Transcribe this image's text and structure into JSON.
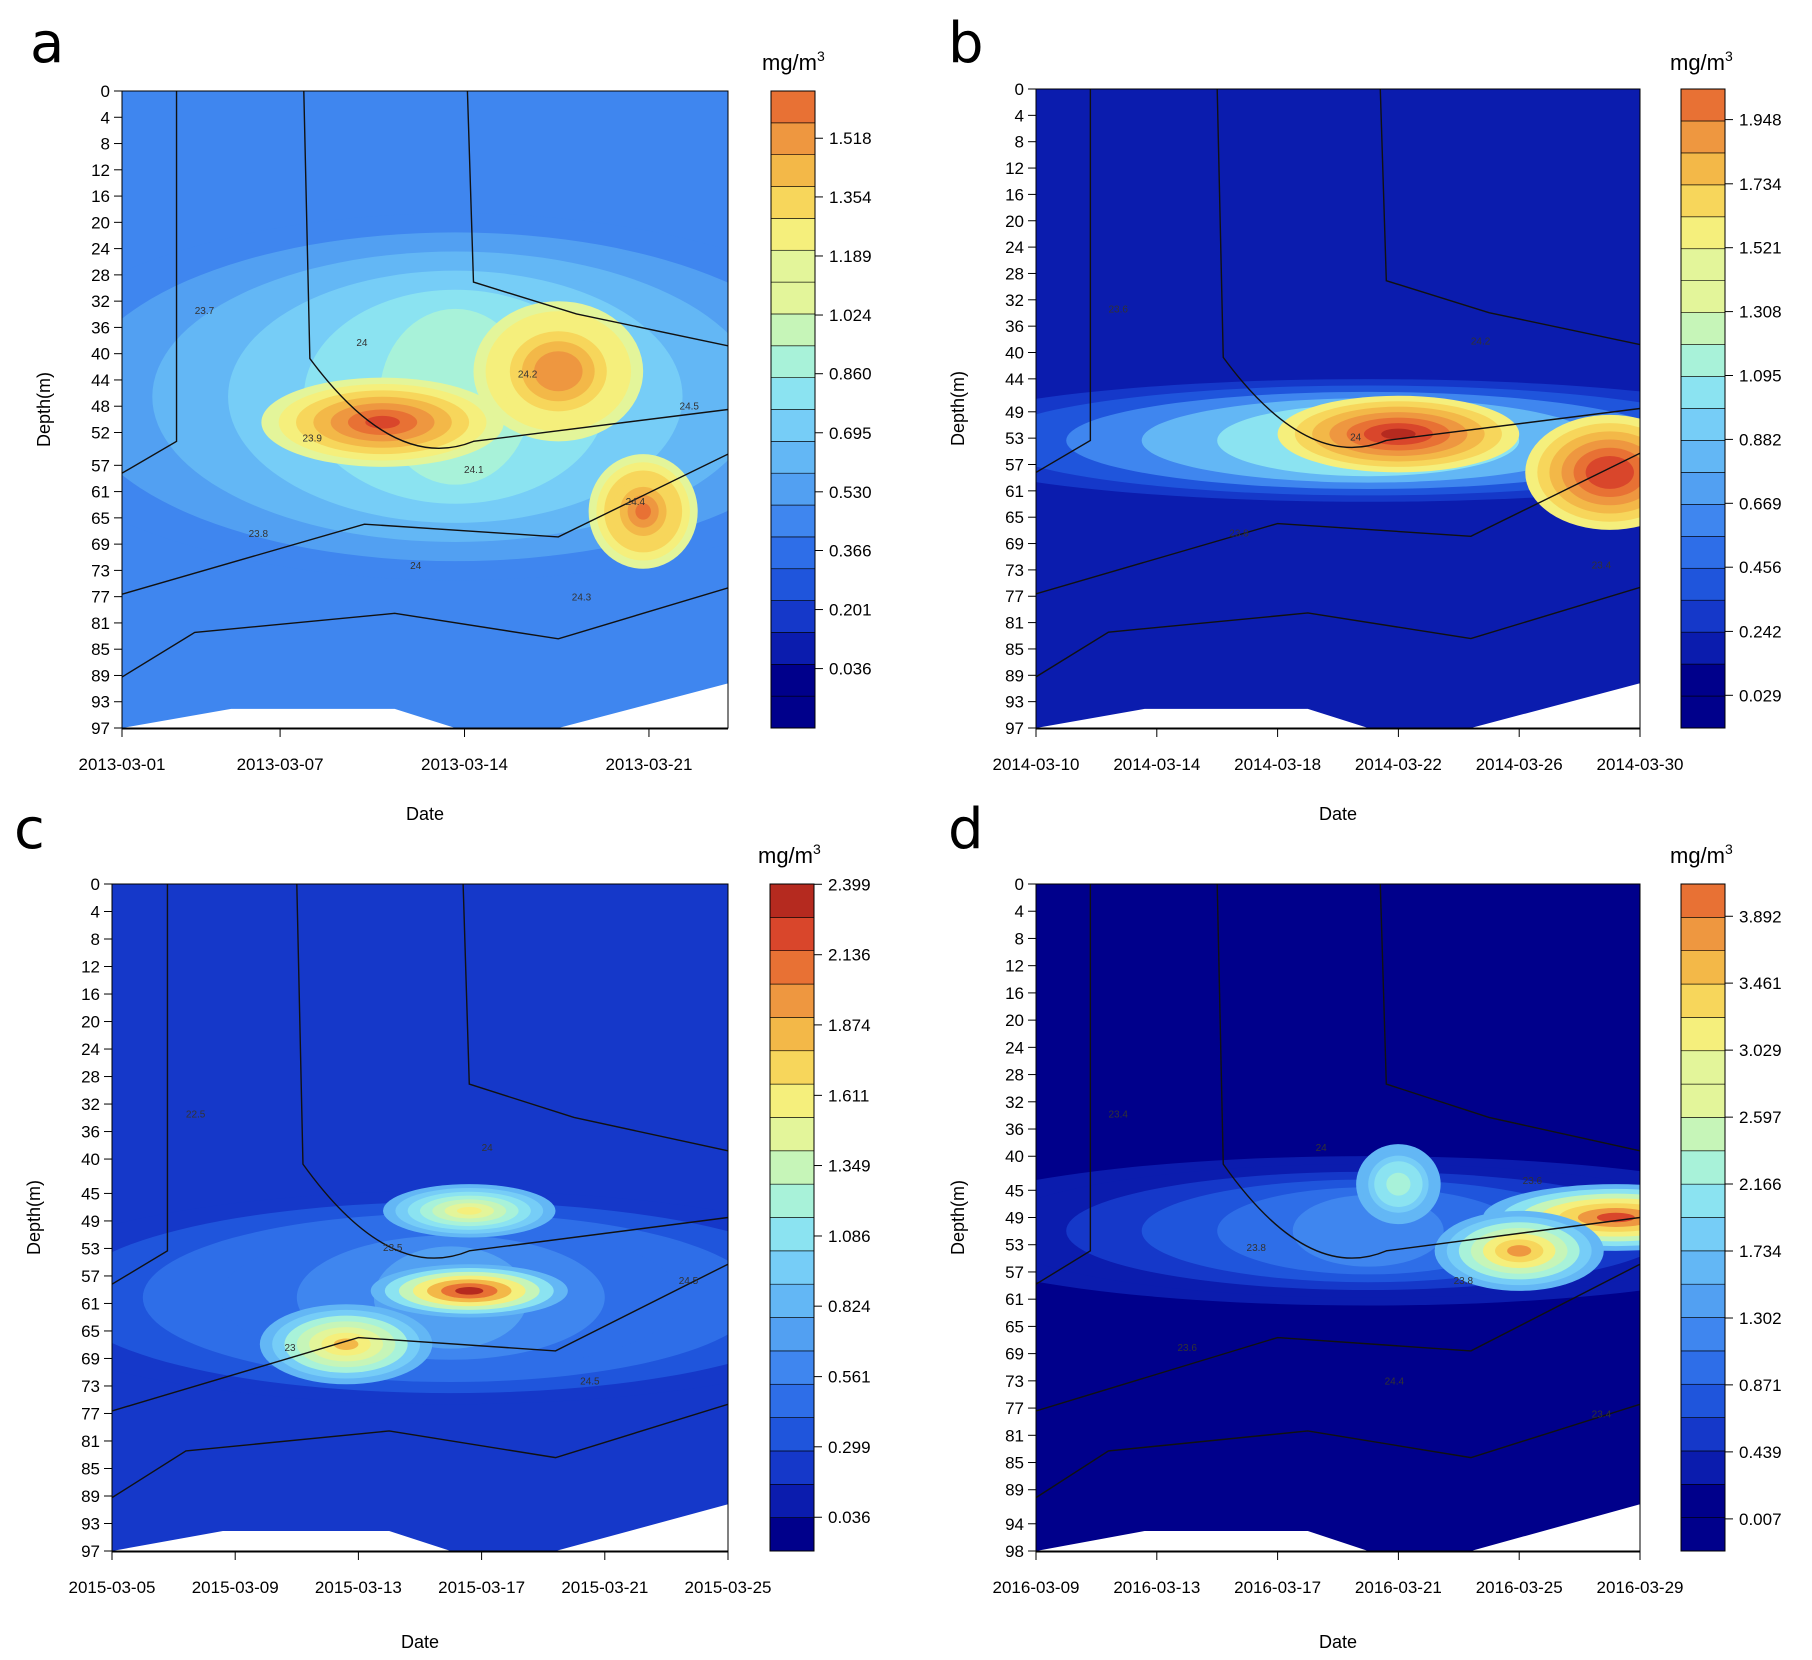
{
  "chart_data": [
    {
      "panel": "a",
      "type": "heatmap",
      "xlabel": "Date",
      "ylabel": "Depth(m)",
      "x_tick_labels": [
        "2013-03-01",
        "2013-03-07",
        "2013-03-14",
        "2013-03-21"
      ],
      "x_range": [
        "2013-03-01",
        "2013-03-24"
      ],
      "y_tick_labels": [
        "0",
        "4",
        "8",
        "12",
        "16",
        "20",
        "24",
        "28",
        "32",
        "36",
        "40",
        "44",
        "48",
        "52",
        "57",
        "61",
        "65",
        "69",
        "73",
        "77",
        "81",
        "85",
        "89",
        "93",
        "97"
      ],
      "y_range": [
        0,
        97
      ],
      "colorbar_unit": "mg/m3",
      "colorbar_ticks": [
        "1.518",
        "1.354",
        "1.189",
        "1.024",
        "0.860",
        "0.695",
        "0.530",
        "0.366",
        "0.201",
        "0.036"
      ],
      "colorbar_range": [
        -0.13,
        1.65
      ],
      "contour_labels": [
        "23.7",
        "23.8",
        "23.9",
        "24",
        "24",
        "24.1",
        "24.2",
        "24.3",
        "24.4",
        "24.5"
      ],
      "maxima": [
        {
          "date": "2013-03-10",
          "depth": 52,
          "value": 1.43
        },
        {
          "date": "2013-03-17",
          "depth": 44,
          "value": 1.3
        },
        {
          "date": "2013-03-21",
          "depth": 65,
          "value": 1.35
        }
      ]
    },
    {
      "panel": "b",
      "type": "heatmap",
      "xlabel": "Date",
      "ylabel": "Depth(m)",
      "x_tick_labels": [
        "2014-03-10",
        "2014-03-14",
        "2014-03-18",
        "2014-03-22",
        "2014-03-26",
        "2014-03-30"
      ],
      "x_range": [
        "2014-03-10",
        "2014-03-30"
      ],
      "y_tick_labels": [
        "0",
        "4",
        "8",
        "12",
        "16",
        "20",
        "24",
        "28",
        "32",
        "36",
        "40",
        "44",
        "49",
        "53",
        "57",
        "61",
        "65",
        "69",
        "73",
        "77",
        "81",
        "85",
        "89",
        "93",
        "97"
      ],
      "y_range": [
        0,
        97
      ],
      "colorbar_unit": "mg/m3",
      "colorbar_ticks": [
        "1.948",
        "1.734",
        "1.521",
        "1.308",
        "1.095",
        "0.882",
        "0.669",
        "0.456",
        "0.242",
        "0.029"
      ],
      "colorbar_range": [
        -0.08,
        2.05
      ],
      "contour_labels": [
        "23.6",
        "23.8",
        "24",
        "24.2",
        "23.4"
      ],
      "maxima": [
        {
          "date": "2014-03-22",
          "depth": 53,
          "value": 1.9
        },
        {
          "date": "2014-03-30",
          "depth": 61,
          "value": 1.85
        }
      ]
    },
    {
      "panel": "c",
      "type": "heatmap",
      "xlabel": "Date",
      "ylabel": "Depth(m)",
      "x_tick_labels": [
        "2015-03-05",
        "2015-03-09",
        "2015-03-13",
        "2015-03-17",
        "2015-03-21",
        "2015-03-25"
      ],
      "x_range": [
        "2015-03-05",
        "2015-03-25"
      ],
      "y_tick_labels": [
        "0",
        "4",
        "8",
        "12",
        "16",
        "20",
        "24",
        "28",
        "32",
        "36",
        "40",
        "45",
        "49",
        "53",
        "57",
        "61",
        "65",
        "69",
        "73",
        "77",
        "81",
        "85",
        "89",
        "93",
        "97"
      ],
      "y_range": [
        0,
        97
      ],
      "colorbar_unit": "mg/m3",
      "colorbar_ticks": [
        "2.399",
        "2.136",
        "1.874",
        "1.611",
        "1.349",
        "1.086",
        "0.824",
        "0.561",
        "0.299",
        "0.036"
      ],
      "colorbar_range": [
        -0.09,
        2.4
      ],
      "contour_labels": [
        "22.5",
        "23",
        "23.5",
        "24",
        "24.5",
        "24.5"
      ],
      "maxima": [
        {
          "date": "2015-03-17",
          "depth": 57,
          "value": 2.3
        },
        {
          "date": "2015-03-17",
          "depth": 49,
          "value": 1.55
        },
        {
          "date": "2015-03-13",
          "depth": 69,
          "value": 1.75
        }
      ]
    },
    {
      "panel": "d",
      "type": "heatmap",
      "xlabel": "Date",
      "ylabel": "Depth(m)",
      "x_tick_labels": [
        "2016-03-09",
        "2016-03-13",
        "2016-03-17",
        "2016-03-21",
        "2016-03-25",
        "2016-03-29"
      ],
      "x_range": [
        "2016-03-09",
        "2016-03-29"
      ],
      "y_tick_labels": [
        "0",
        "4",
        "8",
        "12",
        "16",
        "20",
        "24",
        "28",
        "32",
        "36",
        "40",
        "45",
        "49",
        "53",
        "57",
        "61",
        "65",
        "69",
        "73",
        "77",
        "81",
        "85",
        "89",
        "94",
        "98"
      ],
      "y_range": [
        0,
        98
      ],
      "colorbar_unit": "mg/m3",
      "colorbar_ticks": [
        "3.892",
        "3.461",
        "3.029",
        "2.597",
        "2.166",
        "1.734",
        "1.302",
        "0.871",
        "0.439",
        "0.007"
      ],
      "colorbar_range": [
        -0.2,
        4.1
      ],
      "contour_labels": [
        "23.4",
        "23.6",
        "23.8",
        "24",
        "24.4",
        "23.8",
        "23.6",
        "23.4"
      ],
      "maxima": [
        {
          "date": "2016-03-29",
          "depth": 49,
          "value": 3.9
        },
        {
          "date": "2016-03-25",
          "depth": 53,
          "value": 3.3
        },
        {
          "date": "2016-03-21",
          "depth": 45,
          "value": 2.0
        }
      ]
    }
  ],
  "panel_letters": [
    "a",
    "b",
    "c",
    "d"
  ],
  "unit_text": {
    "base": "mg/m",
    "sup": "3"
  },
  "palette": [
    "#00008b",
    "#0b1cae",
    "#1538c9",
    "#1f55dc",
    "#2e6ee8",
    "#3f86ef",
    "#52a0f2",
    "#63b7f5",
    "#76cdf7",
    "#8be3f1",
    "#a8f2d9",
    "#c6f5b8",
    "#e3f59a",
    "#f5ef7c",
    "#f7d65b",
    "#f3b848",
    "#ee9740",
    "#e87134",
    "#d9462b",
    "#b52a1f",
    "#961f16"
  ]
}
